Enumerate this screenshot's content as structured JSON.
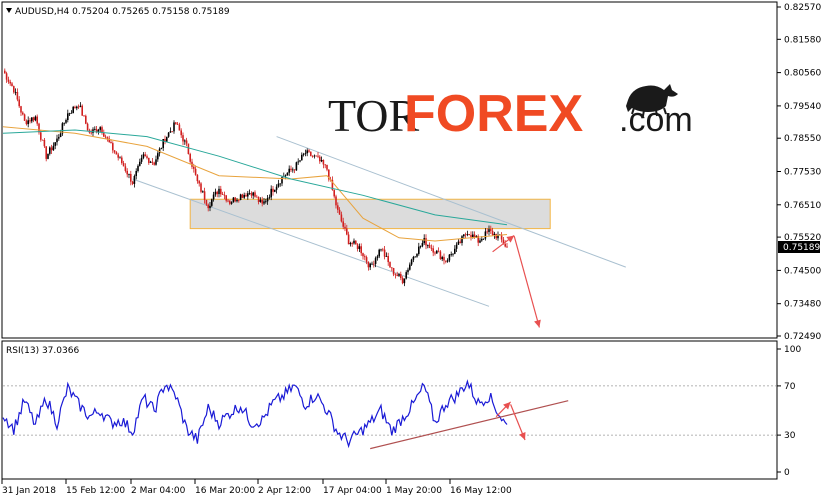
{
  "chart_info": {
    "symbol_line": "AUDUSD,H4  0.75204 0.75265 0.75158 0.75189",
    "current_price": "0.75189",
    "rsi_label": "RSI(13) 37.0366"
  },
  "logo": {
    "part1": "TOR",
    "part2": "FOREX",
    "part3": ".com"
  },
  "colors": {
    "bull_candle": "#000000",
    "bear_candle": "#d11f1f",
    "ma_fast": "#e8a33d",
    "ma_slow": "#2aa89a",
    "channel": "#a9c0d0",
    "zone_fill": "#d6d6d6",
    "zone_border": "#f2b545",
    "arrow": "#e85050",
    "rsi_line": "#1a1ad6",
    "rsi_trend": "#b05050"
  },
  "chart_data": [
    {
      "type": "candlestick",
      "title": "AUDUSD,H4",
      "ylim": [
        0.7249,
        0.8257
      ],
      "y_ticks": [
        "0.82570",
        "0.81580",
        "0.80560",
        "0.79540",
        "0.78550",
        "0.77530",
        "0.76510",
        "0.75520",
        "0.74500",
        "0.73480",
        "0.72490"
      ],
      "x_ticks": [
        "31 Jan 2018",
        "15 Feb 12:00",
        "2 Mar 04:00",
        "16 Mar 20:00",
        "2 Apr 12:00",
        "17 Apr 04:00",
        "1 May 20:00",
        "16 May 12:00"
      ],
      "close_path": [
        [
          0,
          0.8062
        ],
        [
          3,
          0.8005
        ],
        [
          6,
          0.7905
        ],
        [
          9,
          0.792
        ],
        [
          12,
          0.78
        ],
        [
          15,
          0.785
        ],
        [
          18,
          0.793
        ],
        [
          21,
          0.796
        ],
        [
          24,
          0.787
        ],
        [
          27,
          0.789
        ],
        [
          30,
          0.783
        ],
        [
          33,
          0.778
        ],
        [
          36,
          0.772
        ],
        [
          39,
          0.78
        ],
        [
          42,
          0.778
        ],
        [
          45,
          0.7855
        ],
        [
          48,
          0.79
        ],
        [
          51,
          0.783
        ],
        [
          54,
          0.772
        ],
        [
          57,
          0.765
        ],
        [
          60,
          0.77
        ],
        [
          63,
          0.766
        ],
        [
          66,
          0.768
        ],
        [
          69,
          0.769
        ],
        [
          72,
          0.765
        ],
        [
          75,
          0.77
        ],
        [
          78,
          0.774
        ],
        [
          81,
          0.7765
        ],
        [
          84,
          0.781
        ],
        [
          87,
          0.7795
        ],
        [
          90,
          0.776
        ],
        [
          93,
          0.763
        ],
        [
          96,
          0.754
        ],
        [
          99,
          0.752
        ],
        [
          102,
          0.746
        ],
        [
          105,
          0.752
        ],
        [
          108,
          0.745
        ],
        [
          111,
          0.742
        ],
        [
          114,
          0.7495
        ],
        [
          117,
          0.754
        ],
        [
          120,
          0.751
        ],
        [
          123,
          0.748
        ],
        [
          126,
          0.752
        ],
        [
          129,
          0.757
        ],
        [
          132,
          0.754
        ],
        [
          135,
          0.757
        ],
        [
          138,
          0.755
        ],
        [
          140,
          0.7519
        ]
      ],
      "series": [
        {
          "name": "",
          "type": "moving_average",
          "values": [
            [
              0,
              0.789
            ],
            [
              20,
              0.787
            ],
            [
              40,
              0.783
            ],
            [
              60,
              0.774
            ],
            [
              80,
              0.773
            ],
            [
              90,
              0.774
            ],
            [
              100,
              0.761
            ],
            [
              110,
              0.755
            ],
            [
              120,
              0.754
            ],
            [
              140,
              0.756
            ]
          ]
        },
        {
          "name": "",
          "type": "moving_average",
          "values": [
            [
              0,
              0.787
            ],
            [
              20,
              0.788
            ],
            [
              40,
              0.786
            ],
            [
              60,
              0.78
            ],
            [
              80,
              0.773
            ],
            [
              100,
              0.768
            ],
            [
              120,
              0.762
            ],
            [
              140,
              0.759
            ]
          ]
        }
      ],
      "resistance_zone": [
        0.7578,
        0.7668
      ],
      "channel_upper": [
        [
          76,
          0.786
        ],
        [
          173,
          0.746
        ]
      ],
      "channel_lower": [
        [
          36,
          0.773
        ],
        [
          135,
          0.734
        ]
      ],
      "forecast_arrows": [
        [
          [
            136,
            0.7507
          ],
          [
            142,
            0.7557
          ]
        ],
        [
          [
            142,
            0.7555
          ],
          [
            149,
            0.7275
          ]
        ]
      ]
    },
    {
      "type": "line",
      "title": "RSI(13) 37.0366",
      "ylim": [
        0,
        100
      ],
      "y_ticks": [
        "100",
        "70",
        "30",
        "0"
      ],
      "levels": [
        70,
        30
      ],
      "values": [
        [
          0,
          47
        ],
        [
          3,
          35
        ],
        [
          6,
          58
        ],
        [
          9,
          38
        ],
        [
          12,
          60
        ],
        [
          15,
          40
        ],
        [
          18,
          68
        ],
        [
          21,
          55
        ],
        [
          24,
          45
        ],
        [
          27,
          50
        ],
        [
          30,
          40
        ],
        [
          33,
          42
        ],
        [
          36,
          33
        ],
        [
          39,
          60
        ],
        [
          42,
          50
        ],
        [
          45,
          72
        ],
        [
          48,
          62
        ],
        [
          51,
          35
        ],
        [
          54,
          26
        ],
        [
          57,
          52
        ],
        [
          60,
          40
        ],
        [
          63,
          48
        ],
        [
          66,
          54
        ],
        [
          69,
          40
        ],
        [
          72,
          42
        ],
        [
          75,
          56
        ],
        [
          78,
          62
        ],
        [
          81,
          70
        ],
        [
          84,
          55
        ],
        [
          87,
          63
        ],
        [
          90,
          50
        ],
        [
          93,
          32
        ],
        [
          96,
          25
        ],
        [
          99,
          32
        ],
        [
          102,
          40
        ],
        [
          105,
          50
        ],
        [
          108,
          33
        ],
        [
          111,
          44
        ],
        [
          114,
          55
        ],
        [
          117,
          70
        ],
        [
          120,
          40
        ],
        [
          123,
          56
        ],
        [
          126,
          62
        ],
        [
          129,
          73
        ],
        [
          132,
          56
        ],
        [
          135,
          62
        ],
        [
          138,
          46
        ],
        [
          140,
          37
        ]
      ],
      "trendline": [
        [
          102,
          19
        ],
        [
          157,
          58
        ]
      ],
      "forecast_arrows": [
        [
          [
            137,
            45
          ],
          [
            141,
            57
          ]
        ],
        [
          [
            141,
            55
          ],
          [
            145,
            26
          ]
        ]
      ]
    }
  ]
}
